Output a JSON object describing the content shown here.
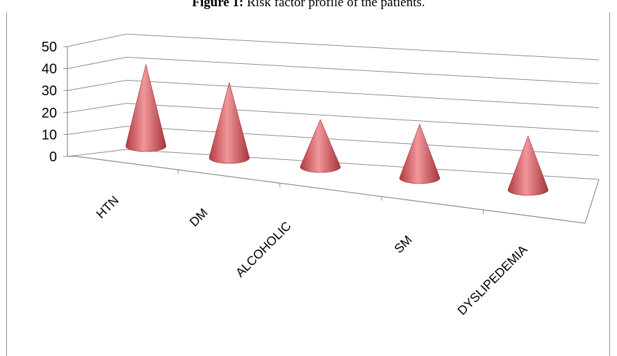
{
  "caption": {
    "bold": "Figure 1:",
    "rest": " Risk factor profile of the patients."
  },
  "chart_data": {
    "type": "bar",
    "style": "3d-cone",
    "categories": [
      "HTN",
      "DM",
      "ALCOHOLIC",
      "SM",
      "DYSLIPEDEMIA"
    ],
    "values": [
      38,
      35,
      22,
      25,
      25
    ],
    "yticks": [
      0,
      10,
      20,
      30,
      40,
      50
    ],
    "ylim": [
      0,
      50
    ],
    "grid": true,
    "legend": "none",
    "color": "#c8484c"
  }
}
